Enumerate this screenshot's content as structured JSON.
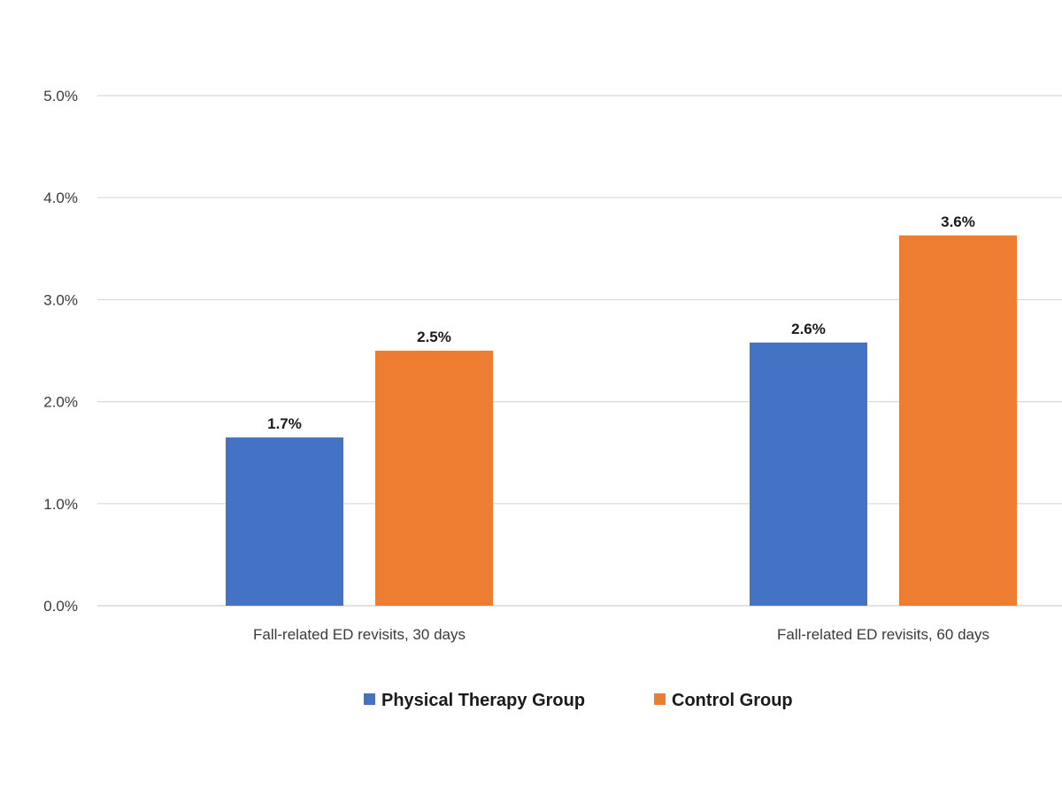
{
  "chart_data": {
    "type": "bar",
    "title": "",
    "xlabel": "",
    "ylabel": "",
    "categories": [
      "Fall-related ED revisits, 30 days",
      "Fall-related ED revisits, 60 days"
    ],
    "series": [
      {
        "name": "Physical Therapy Group",
        "color": "#4472c4",
        "values": [
          1.65,
          2.58
        ],
        "labels": [
          "1.7%",
          "2.6%"
        ]
      },
      {
        "name": "Control Group",
        "color": "#ed7d31",
        "values": [
          2.5,
          3.63
        ],
        "labels": [
          "2.5%",
          "3.6%"
        ]
      }
    ],
    "ylim": [
      0,
      5
    ],
    "yticks": [
      0,
      1,
      2,
      3,
      4,
      5
    ],
    "ytick_labels": [
      "0.0%",
      "1.0%",
      "2.0%",
      "3.0%",
      "4.0%",
      "5.0%"
    ],
    "grid": true,
    "legend": "bottom-center"
  }
}
